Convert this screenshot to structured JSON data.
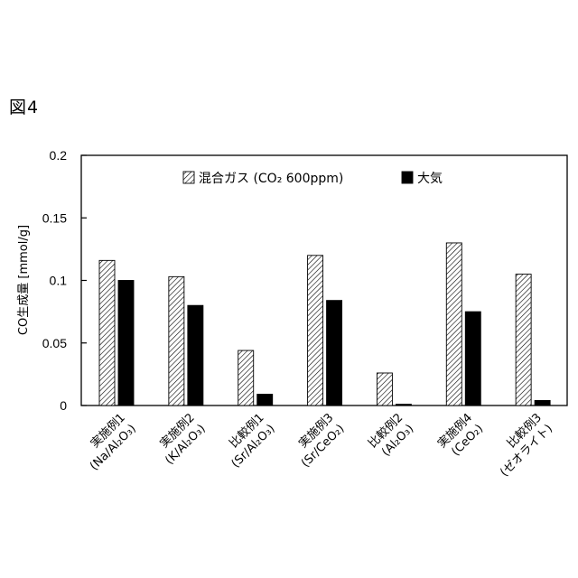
{
  "figure_label": "図4",
  "chart_data": {
    "type": "bar",
    "title": "",
    "xlabel": "",
    "ylabel": "CO生成量 [mmol/g]",
    "ylim": [
      0,
      0.2
    ],
    "yticks": [
      "0",
      "0.05",
      "0.1",
      "0.15",
      "0.2"
    ],
    "ytick_values": [
      0,
      0.05,
      0.1,
      0.15,
      0.2
    ],
    "grid": false,
    "legend_position": "top",
    "categories": [
      {
        "line1": "実施例1",
        "line2": "(Na/Al₂O₃)"
      },
      {
        "line1": "実施例2",
        "line2": "(K/Al₂O₃)"
      },
      {
        "line1": "比較例1",
        "line2": "(Sr/Al₂O₃)"
      },
      {
        "line1": "実施例3",
        "line2": "(Sr/CeO₂)"
      },
      {
        "line1": "比較例2",
        "line2": "(Al₂O₃)"
      },
      {
        "line1": "実施例4",
        "line2": "(CeO₂)"
      },
      {
        "line1": "比較例3",
        "line2": "(ゼオライト)"
      }
    ],
    "series": [
      {
        "name": "混合ガス (CO₂ 600ppm)",
        "fill": "hatched",
        "values": [
          0.116,
          0.103,
          0.044,
          0.12,
          0.026,
          0.13,
          0.105
        ]
      },
      {
        "name": "大気",
        "fill": "solid",
        "color": "#000000",
        "values": [
          0.1,
          0.08,
          0.009,
          0.084,
          0.001,
          0.075,
          0.004
        ]
      }
    ]
  }
}
